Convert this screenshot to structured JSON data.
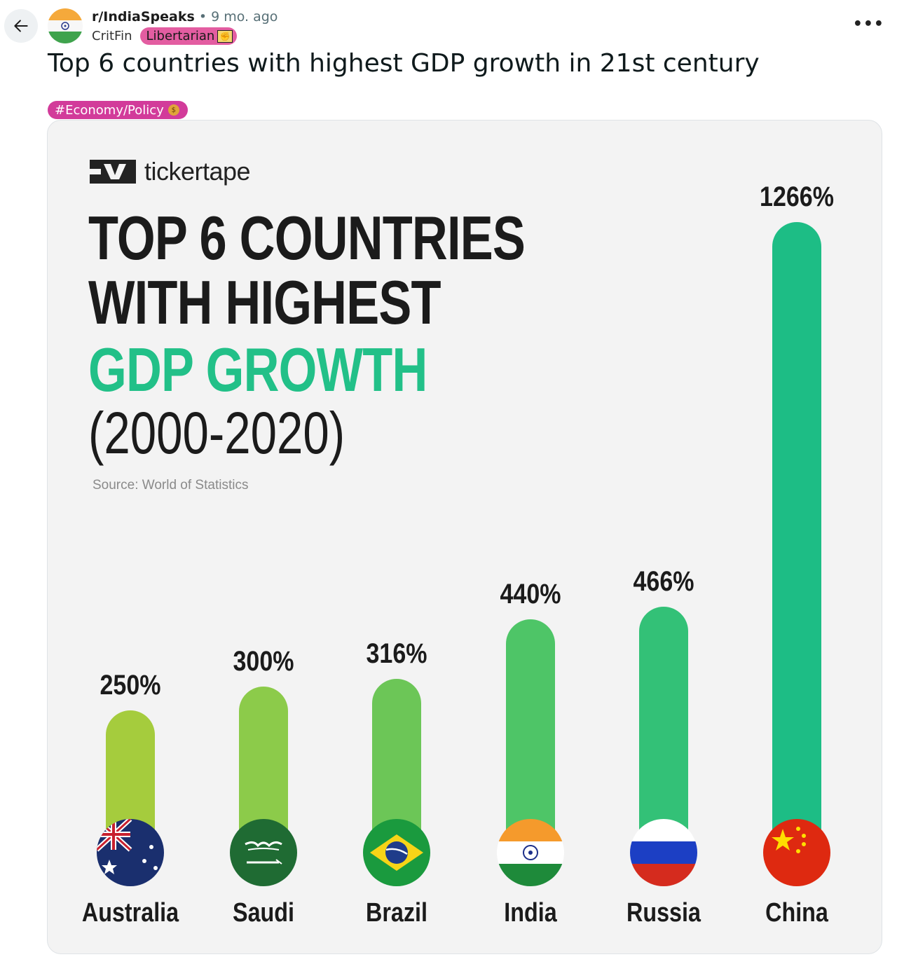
{
  "post": {
    "subreddit": "r/IndiaSpeaks",
    "separator": "•",
    "time": "9 mo. ago",
    "author": "CritFin",
    "user_flair": "Libertarian",
    "title": "Top 6 countries with highest GDP growth in 21st century",
    "post_flair": "#Economy/Policy"
  },
  "icons": {
    "back": "arrow-left-icon",
    "more": "more-options-icon",
    "flair_user_emoji": "libertarian-emoji-icon",
    "flair_post_emoji": "money-bag-icon"
  },
  "infographic": {
    "brand": "tickertape",
    "title_line1": "TOP 6 COUNTRIES",
    "title_line2": "WITH HIGHEST",
    "title_line3": "GDP GROWTH",
    "title_line4": "(2000-2020)",
    "source": "Source: World of Statistics"
  },
  "colors": {
    "flair_user": "#e35da1",
    "flair_post": "#d23b9a",
    "accent_green": "#22c088"
  },
  "chart_data": {
    "type": "bar",
    "categories": [
      "Australia",
      "Saudi",
      "Brazil",
      "India",
      "Russia",
      "China"
    ],
    "values": [
      250,
      300,
      316,
      440,
      466,
      1266
    ],
    "value_labels": [
      "250%",
      "300%",
      "316%",
      "440%",
      "466%",
      "1266%"
    ],
    "bar_colors": [
      "#a5cc3d",
      "#8ccb4a",
      "#6cc657",
      "#4ec567",
      "#33c177",
      "#1dbd85"
    ],
    "title": "TOP 6 COUNTRIES WITH HIGHEST GDP GROWTH (2000-2020)",
    "xlabel": "",
    "ylabel": ""
  }
}
